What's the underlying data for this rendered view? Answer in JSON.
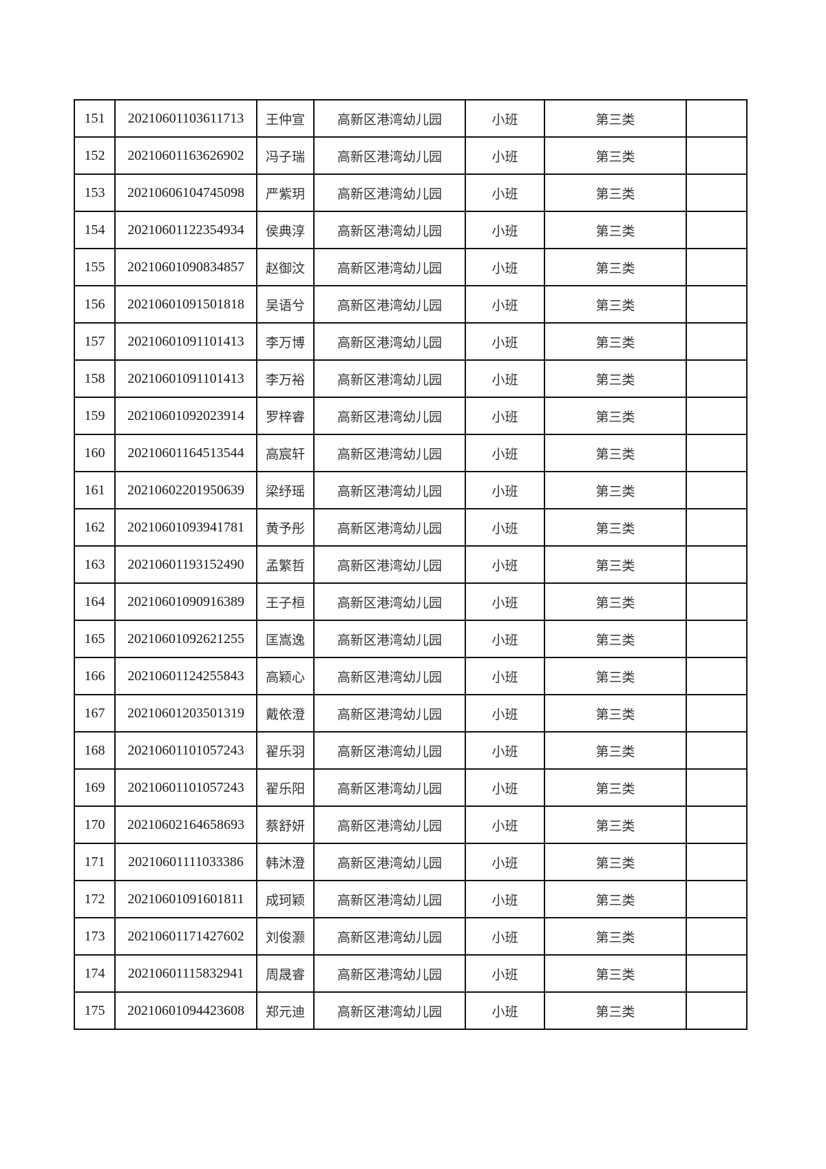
{
  "rows": [
    {
      "no": "151",
      "id": "20210601103611713",
      "name": "王仲宣",
      "school": "高新区港湾幼儿园",
      "class": "小班",
      "category": "第三类",
      "note": ""
    },
    {
      "no": "152",
      "id": "20210601163626902",
      "name": "冯子瑞",
      "school": "高新区港湾幼儿园",
      "class": "小班",
      "category": "第三类",
      "note": ""
    },
    {
      "no": "153",
      "id": "20210606104745098",
      "name": "严紫玥",
      "school": "高新区港湾幼儿园",
      "class": "小班",
      "category": "第三类",
      "note": ""
    },
    {
      "no": "154",
      "id": "20210601122354934",
      "name": "侯典淳",
      "school": "高新区港湾幼儿园",
      "class": "小班",
      "category": "第三类",
      "note": ""
    },
    {
      "no": "155",
      "id": "20210601090834857",
      "name": "赵御汶",
      "school": "高新区港湾幼儿园",
      "class": "小班",
      "category": "第三类",
      "note": ""
    },
    {
      "no": "156",
      "id": "20210601091501818",
      "name": "吴语兮",
      "school": "高新区港湾幼儿园",
      "class": "小班",
      "category": "第三类",
      "note": ""
    },
    {
      "no": "157",
      "id": "20210601091101413",
      "name": "李万博",
      "school": "高新区港湾幼儿园",
      "class": "小班",
      "category": "第三类",
      "note": ""
    },
    {
      "no": "158",
      "id": "20210601091101413",
      "name": "李万裕",
      "school": "高新区港湾幼儿园",
      "class": "小班",
      "category": "第三类",
      "note": ""
    },
    {
      "no": "159",
      "id": "20210601092023914",
      "name": "罗梓睿",
      "school": "高新区港湾幼儿园",
      "class": "小班",
      "category": "第三类",
      "note": ""
    },
    {
      "no": "160",
      "id": "20210601164513544",
      "name": "高宸轩",
      "school": "高新区港湾幼儿园",
      "class": "小班",
      "category": "第三类",
      "note": ""
    },
    {
      "no": "161",
      "id": "20210602201950639",
      "name": "梁纾瑶",
      "school": "高新区港湾幼儿园",
      "class": "小班",
      "category": "第三类",
      "note": ""
    },
    {
      "no": "162",
      "id": "20210601093941781",
      "name": "黄予彤",
      "school": "高新区港湾幼儿园",
      "class": "小班",
      "category": "第三类",
      "note": ""
    },
    {
      "no": "163",
      "id": "20210601193152490",
      "name": "孟繁哲",
      "school": "高新区港湾幼儿园",
      "class": "小班",
      "category": "第三类",
      "note": ""
    },
    {
      "no": "164",
      "id": "20210601090916389",
      "name": "王子桓",
      "school": "高新区港湾幼儿园",
      "class": "小班",
      "category": "第三类",
      "note": ""
    },
    {
      "no": "165",
      "id": "20210601092621255",
      "name": "匡嵩逸",
      "school": "高新区港湾幼儿园",
      "class": "小班",
      "category": "第三类",
      "note": ""
    },
    {
      "no": "166",
      "id": "20210601124255843",
      "name": "高颖心",
      "school": "高新区港湾幼儿园",
      "class": "小班",
      "category": "第三类",
      "note": ""
    },
    {
      "no": "167",
      "id": "20210601203501319",
      "name": "戴依澄",
      "school": "高新区港湾幼儿园",
      "class": "小班",
      "category": "第三类",
      "note": ""
    },
    {
      "no": "168",
      "id": "20210601101057243",
      "name": "翟乐羽",
      "school": "高新区港湾幼儿园",
      "class": "小班",
      "category": "第三类",
      "note": ""
    },
    {
      "no": "169",
      "id": "20210601101057243",
      "name": "翟乐阳",
      "school": "高新区港湾幼儿园",
      "class": "小班",
      "category": "第三类",
      "note": ""
    },
    {
      "no": "170",
      "id": "20210602164658693",
      "name": "蔡舒妍",
      "school": "高新区港湾幼儿园",
      "class": "小班",
      "category": "第三类",
      "note": ""
    },
    {
      "no": "171",
      "id": "20210601111033386",
      "name": "韩沐澄",
      "school": "高新区港湾幼儿园",
      "class": "小班",
      "category": "第三类",
      "note": ""
    },
    {
      "no": "172",
      "id": "20210601091601811",
      "name": "成珂颖",
      "school": "高新区港湾幼儿园",
      "class": "小班",
      "category": "第三类",
      "note": ""
    },
    {
      "no": "173",
      "id": "20210601171427602",
      "name": "刘俊灏",
      "school": "高新区港湾幼儿园",
      "class": "小班",
      "category": "第三类",
      "note": ""
    },
    {
      "no": "174",
      "id": "20210601115832941",
      "name": "周晟睿",
      "school": "高新区港湾幼儿园",
      "class": "小班",
      "category": "第三类",
      "note": ""
    },
    {
      "no": "175",
      "id": "20210601094423608",
      "name": "郑元迪",
      "school": "高新区港湾幼儿园",
      "class": "小班",
      "category": "第三类",
      "note": ""
    }
  ]
}
